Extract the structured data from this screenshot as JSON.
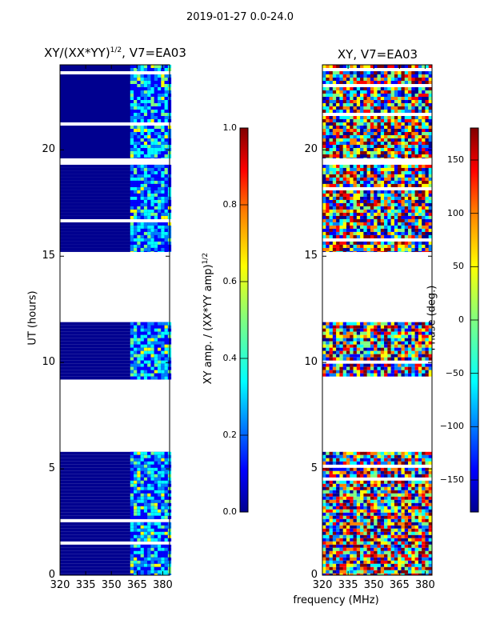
{
  "figure": {
    "suptitle": "2019-01-27 0.0-24.0",
    "shared_xlabel": "frequency (MHz)"
  },
  "colors": {
    "data_blue": "#00008f",
    "empty": "#ffffff",
    "jet": [
      "#00008f",
      "#0000ff",
      "#0080ff",
      "#00ffff",
      "#80ff80",
      "#ffff00",
      "#ff8000",
      "#ff0000",
      "#800000"
    ]
  },
  "chart_data": [
    {
      "type": "heatmap",
      "name": "amplitude-ratio",
      "title_main": "XY/(XX*YY)",
      "title_sup": "1/2",
      "title_tail": ", V7=EA03",
      "xlabel": "",
      "ylabel": "UT (hours)",
      "xlim": [
        320,
        384
      ],
      "ylim": [
        0,
        24
      ],
      "xticks": [
        "320",
        "335",
        "350",
        "365",
        "380"
      ],
      "xtick_values": [
        320,
        335,
        350,
        365,
        380
      ],
      "yticks": [
        "0",
        "5",
        "10",
        "15",
        "20"
      ],
      "ytick_values": [
        0,
        5,
        10,
        15,
        20
      ],
      "data_ranges_hours": [
        [
          0,
          5.8
        ],
        [
          9.2,
          11.9
        ],
        [
          15.2,
          19.3
        ],
        [
          19.6,
          24
        ]
      ],
      "active_channel_band_mhz": [
        361,
        384
      ],
      "colorbar": {
        "label_main": "XY amp. / (XX*YY amp)",
        "label_sup": "1/2",
        "min": 0.0,
        "max": 1.0,
        "ticks": [
          "0.0",
          "0.2",
          "0.4",
          "0.6",
          "0.8",
          "1.0"
        ],
        "tick_values": [
          0.0,
          0.2,
          0.4,
          0.6,
          0.8,
          1.0
        ]
      }
    },
    {
      "type": "heatmap",
      "name": "phase",
      "title": "XY, V7=EA03",
      "xlabel": "frequency (MHz)",
      "ylabel": "",
      "xlim": [
        320,
        384
      ],
      "ylim": [
        0,
        24
      ],
      "xticks": [
        "320",
        "335",
        "350",
        "365",
        "380"
      ],
      "xtick_values": [
        320,
        335,
        350,
        365,
        380
      ],
      "yticks": [
        "0",
        "5",
        "10",
        "15",
        "20"
      ],
      "ytick_values": [
        0,
        5,
        10,
        15,
        20
      ],
      "data_ranges_hours": [
        [
          0,
          5.8
        ],
        [
          9.2,
          11.9
        ],
        [
          15.2,
          19.3
        ],
        [
          19.6,
          24
        ]
      ],
      "colorbar": {
        "label": "Phase (deg.)",
        "min": -180,
        "max": 180,
        "ticks": [
          "−150",
          "−100",
          "−50",
          "0",
          "50",
          "100",
          "150"
        ],
        "tick_values": [
          -150,
          -100,
          -50,
          0,
          50,
          100,
          150
        ]
      }
    }
  ]
}
